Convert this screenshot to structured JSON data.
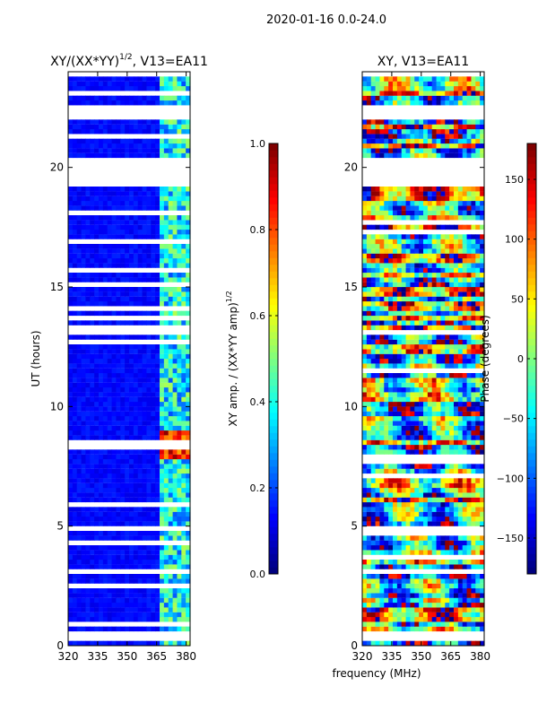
{
  "figure": {
    "suptitle": "2020-01-16 0.0-24.0",
    "shared_xlabel": "frequency (MHz)"
  },
  "colors": {
    "jet": [
      "#00007f",
      "#0000ff",
      "#007fff",
      "#00ffff",
      "#7fff7f",
      "#ffff00",
      "#ff7f00",
      "#ff0000",
      "#7f0000"
    ],
    "gap": "#ffffff",
    "axis": "#000000"
  },
  "chart_data": [
    {
      "type": "heatmap",
      "title_main": "XY/(XX*YY)",
      "title_sup": "1/2",
      "title_tail": ", V13=EA11",
      "xlabel": "",
      "ylabel": "UT (hours)",
      "xlim": [
        320,
        382
      ],
      "ylim": [
        0,
        24
      ],
      "xticks": [
        320,
        335,
        350,
        365,
        380
      ],
      "yticks": [
        0,
        5,
        10,
        15,
        20
      ],
      "data_gaps_hours": [
        [
          0.15,
          0.6
        ],
        [
          19.2,
          20.5
        ],
        [
          22.1,
          22.6
        ],
        [
          23.9,
          24
        ]
      ],
      "bright_band_mhz": [
        365,
        381
      ],
      "hot_spot": {
        "hours": [
          7.8,
          8.8
        ],
        "mhz": [
          364,
          381
        ]
      },
      "colorbar": {
        "label_main": "XY amp. / (XX*YY amp)",
        "label_sup": "1/2",
        "vmin": 0.0,
        "vmax": 1.0,
        "ticks": [
          "0.0",
          "0.2",
          "0.4",
          "0.6",
          "0.8",
          "1.0"
        ]
      }
    },
    {
      "type": "heatmap",
      "title_main": "XY, V13=EA11",
      "title_sup": "",
      "title_tail": "",
      "xlabel": "",
      "ylabel": "",
      "xlim": [
        320,
        382
      ],
      "ylim": [
        0,
        24
      ],
      "xticks": [
        320,
        335,
        350,
        365,
        380
      ],
      "yticks": [
        0,
        5,
        10,
        15,
        20
      ],
      "data_gaps_hours": [
        [
          0.15,
          0.6
        ],
        [
          19.2,
          20.5
        ],
        [
          22.1,
          22.6
        ],
        [
          23.9,
          24
        ]
      ],
      "colorbar": {
        "label_main": "Phase (degrees)",
        "label_sup": "",
        "vmin": -180,
        "vmax": 180,
        "ticks": [
          "−150",
          "−100",
          "−50",
          "0",
          "50",
          "100",
          "150"
        ]
      }
    }
  ]
}
